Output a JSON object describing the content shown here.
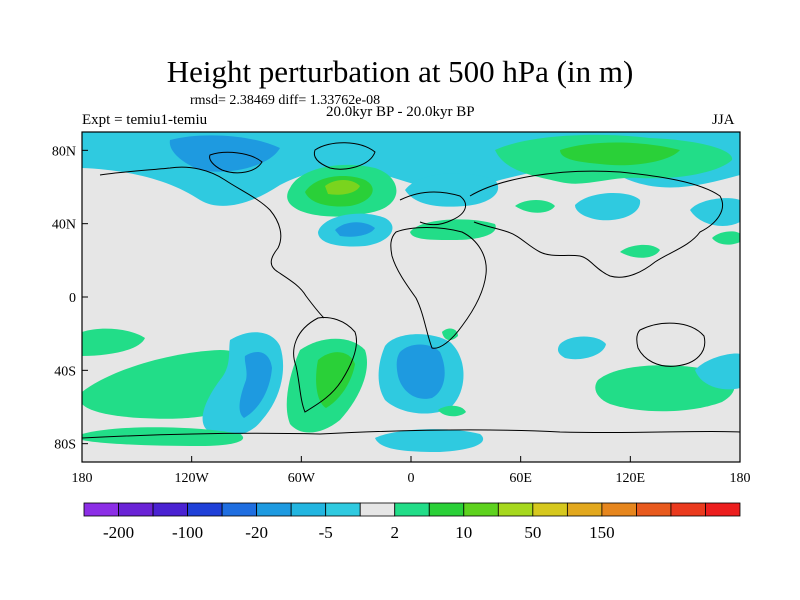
{
  "title": "Height perturbation at 500 hPa (in m)",
  "stats": "rmsd= 2.38469 diff= 1.33762e-08",
  "experiment": "Expt = temiu1-temiu",
  "period": "20.0kyr BP - 20.0kyr BP",
  "season": "JJA",
  "axes": {
    "lon_ticks": [
      {
        "value": -180,
        "label": "180"
      },
      {
        "value": -120,
        "label": "120W"
      },
      {
        "value": -60,
        "label": "60W"
      },
      {
        "value": 0,
        "label": "0"
      },
      {
        "value": 60,
        "label": "60E"
      },
      {
        "value": 120,
        "label": "120E"
      },
      {
        "value": 180,
        "label": "180"
      }
    ],
    "lat_ticks": [
      {
        "value": 80,
        "label": "80N"
      },
      {
        "value": 40,
        "label": "40N"
      },
      {
        "value": 0,
        "label": "0"
      },
      {
        "value": -40,
        "label": "40S"
      },
      {
        "value": -80,
        "label": "80S"
      }
    ],
    "lon_range": [
      -180,
      180
    ],
    "lat_range": [
      -90,
      90
    ]
  },
  "colorbar": {
    "colors": [
      "#8c2ee6",
      "#6a23d6",
      "#4a22d2",
      "#1f40d8",
      "#1f6ee0",
      "#1e9ae0",
      "#22b5e0",
      "#2fcae0",
      "#e6e6e6",
      "#22dd88",
      "#2ad038",
      "#5ed21e",
      "#a6d81e",
      "#d6c81e",
      "#e2a81e",
      "#e6861e",
      "#e85a1e",
      "#ea3a1e",
      "#ec1e1e"
    ],
    "labels": [
      {
        "after_box": 1,
        "text": "-200"
      },
      {
        "after_box": 3,
        "text": "-100"
      },
      {
        "after_box": 5,
        "text": "-20"
      },
      {
        "after_box": 7,
        "text": "-5"
      },
      {
        "after_box": 9,
        "text": "2"
      },
      {
        "after_box": 11,
        "text": "10"
      },
      {
        "after_box": 13,
        "text": "50"
      },
      {
        "after_box": 15,
        "text": "150"
      }
    ]
  }
}
